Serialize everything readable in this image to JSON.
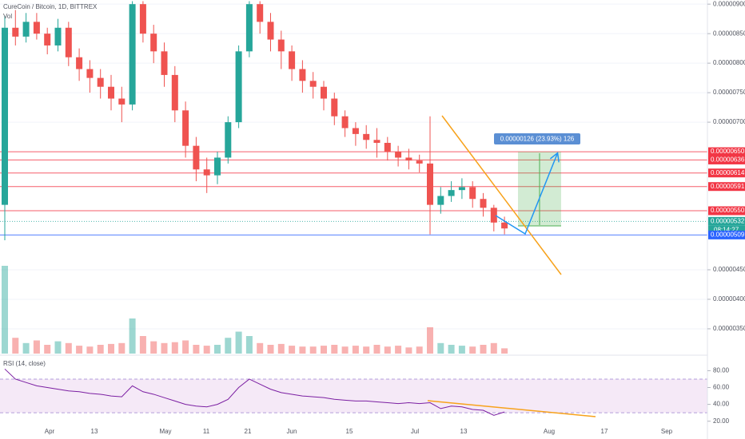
{
  "chart_data": {
    "type": "candlestick",
    "title": "CureCoin / Bitcoin, 1D, BITTREX",
    "volume_label": "Vol",
    "ohlc": [
      [
        5.6e-06,
        8.8e-06,
        5e-06,
        8.6e-06
      ],
      [
        8.6e-06,
        8.9e-06,
        8.3e-06,
        8.45e-06
      ],
      [
        8.45e-06,
        8.85e-06,
        8.35e-06,
        8.7e-06
      ],
      [
        8.7e-06,
        8.85e-06,
        8.4e-06,
        8.5e-06
      ],
      [
        8.5e-06,
        8.6e-06,
        8.15e-06,
        8.3e-06
      ],
      [
        8.3e-06,
        8.75e-06,
        8.2e-06,
        8.6e-06
      ],
      [
        8.6e-06,
        8.7e-06,
        7.95e-06,
        8.1e-06
      ],
      [
        8.1e-06,
        8.25e-06,
        7.7e-06,
        7.9e-06
      ],
      [
        7.9e-06,
        8.05e-06,
        7.5e-06,
        7.75e-06
      ],
      [
        7.75e-06,
        7.9e-06,
        7.4e-06,
        7.6e-06
      ],
      [
        7.6e-06,
        7.8e-06,
        7.2e-06,
        7.4e-06
      ],
      [
        7.4e-06,
        7.6e-06,
        7e-06,
        7.3e-06
      ],
      [
        7.3e-06,
        9.05e-06,
        7.2e-06,
        9e-06
      ],
      [
        9e-06,
        9.05e-06,
        8.35e-06,
        8.5e-06
      ],
      [
        8.5e-06,
        8.65e-06,
        8e-06,
        8.2e-06
      ],
      [
        8.2e-06,
        8.35e-06,
        7.6e-06,
        7.8e-06
      ],
      [
        7.8e-06,
        7.95e-06,
        7e-06,
        7.2e-06
      ],
      [
        7.2e-06,
        7.35e-06,
        6.4e-06,
        6.6e-06
      ],
      [
        6.6e-06,
        6.75e-06,
        6e-06,
        6.2e-06
      ],
      [
        6.2e-06,
        6.4e-06,
        5.8e-06,
        6.1e-06
      ],
      [
        6.1e-06,
        6.5e-06,
        5.95e-06,
        6.4e-06
      ],
      [
        6.4e-06,
        7.1e-06,
        6.3e-06,
        7e-06
      ],
      [
        7e-06,
        8.3e-06,
        6.9e-06,
        8.2e-06
      ],
      [
        8.2e-06,
        9.05e-06,
        8.1e-06,
        9e-06
      ],
      [
        9e-06,
        9.05e-06,
        8.5e-06,
        8.7e-06
      ],
      [
        8.7e-06,
        8.85e-06,
        8.2e-06,
        8.4e-06
      ],
      [
        8.4e-06,
        8.55e-06,
        7.9e-06,
        8.2e-06
      ],
      [
        8.2e-06,
        8.3e-06,
        7.7e-06,
        7.9e-06
      ],
      [
        7.9e-06,
        8.05e-06,
        7.5e-06,
        7.7e-06
      ],
      [
        7.7e-06,
        7.85e-06,
        7.4e-06,
        7.6e-06
      ],
      [
        7.6e-06,
        7.7e-06,
        7.2e-06,
        7.4e-06
      ],
      [
        7.4e-06,
        7.5e-06,
        6.95e-06,
        7.1e-06
      ],
      [
        7.1e-06,
        7.2e-06,
        6.75e-06,
        6.9e-06
      ],
      [
        6.9e-06,
        7e-06,
        6.6e-06,
        6.8e-06
      ],
      [
        6.8e-06,
        6.95e-06,
        6.55e-06,
        6.7e-06
      ],
      [
        6.7e-06,
        6.9e-06,
        6.4e-06,
        6.65e-06
      ],
      [
        6.65e-06,
        6.75e-06,
        6.35e-06,
        6.5e-06
      ],
      [
        6.5e-06,
        6.6e-06,
        6.25e-06,
        6.4e-06
      ],
      [
        6.4e-06,
        6.55e-06,
        6.2e-06,
        6.35e-06
      ],
      [
        6.35e-06,
        6.45e-06,
        6.15e-06,
        6.3e-06
      ],
      [
        6.3e-06,
        7.1e-06,
        5.1e-06,
        5.6e-06
      ],
      [
        5.6e-06,
        5.9e-06,
        5.45e-06,
        5.75e-06
      ],
      [
        5.75e-06,
        6e-06,
        5.65e-06,
        5.85e-06
      ],
      [
        5.85e-06,
        6.05e-06,
        5.7e-06,
        5.9e-06
      ],
      [
        5.9e-06,
        6e-06,
        5.55e-06,
        5.7e-06
      ],
      [
        5.7e-06,
        5.8e-06,
        5.4e-06,
        5.55e-06
      ],
      [
        5.55e-06,
        5.6e-06,
        5.15e-06,
        5.3e-06
      ],
      [
        5.3e-06,
        5.4e-06,
        5.1e-06,
        5.2e-06
      ]
    ],
    "volume": [
      100,
      18,
      12,
      15,
      10,
      14,
      12,
      9,
      8,
      10,
      11,
      12,
      40,
      20,
      14,
      12,
      13,
      15,
      10,
      9,
      10,
      18,
      25,
      20,
      12,
      10,
      11,
      9,
      8,
      8,
      9,
      10,
      8,
      9,
      8,
      10,
      8,
      9,
      7,
      8,
      30,
      12,
      10,
      9,
      8,
      10,
      12,
      6
    ],
    "ylim": [
      3.08e-06,
      9.07e-06
    ],
    "yticks": [
      {
        "value": 9e-06,
        "label": "0.00000900"
      },
      {
        "value": 8.5e-06,
        "label": "0.00000850"
      },
      {
        "value": 8e-06,
        "label": "0.00000800"
      },
      {
        "value": 7.5e-06,
        "label": "0.00000750"
      },
      {
        "value": 7e-06,
        "label": "0.00000700"
      },
      {
        "value": 4.5e-06,
        "label": "0.00000450"
      },
      {
        "value": 4e-06,
        "label": "0.00000400"
      },
      {
        "value": 3.5e-06,
        "label": "0.00000350"
      }
    ],
    "x_labels": [
      "Apr",
      "13",
      "May",
      "11",
      "21",
      "Jun",
      "15",
      "Jul",
      "13",
      "Aug",
      "17",
      "Sep"
    ],
    "price_lines": [
      {
        "value": 6.5e-06,
        "label": "0.00000650",
        "color": "#f23645"
      },
      {
        "value": 6.36e-06,
        "label": "0.00000636",
        "color": "#f23645"
      },
      {
        "value": 6.14e-06,
        "label": "0.00000614",
        "color": "#f23645"
      },
      {
        "value": 5.91e-06,
        "label": "0.00000591",
        "color": "#f23645"
      },
      {
        "value": 5.5e-06,
        "label": "0.00000550",
        "color": "#f23645"
      },
      {
        "value": 5.32e-06,
        "label": "0.00000532",
        "color": "#26a69a"
      },
      {
        "value": 5.09e-06,
        "label": "0.00000509",
        "color": "#2962ff"
      }
    ],
    "countdown": "08:14:27",
    "measure_label": "0.00000126 (23.93%) 126",
    "up_color": "#26a69a",
    "down_color": "#ef5350",
    "rsi": {
      "title": "RSI (14, close)",
      "color": "#7b1fa2",
      "values": [
        82,
        70,
        66,
        62,
        60,
        58,
        56,
        55,
        53,
        52,
        50,
        49,
        62,
        55,
        52,
        48,
        44,
        40,
        38,
        37,
        40,
        46,
        60,
        70,
        64,
        58,
        54,
        52,
        50,
        49,
        48,
        46,
        45,
        44,
        44,
        43,
        42,
        41,
        42,
        41,
        42,
        35,
        38,
        37,
        34,
        33,
        27,
        31
      ],
      "ylim": [
        15,
        96.5
      ],
      "yticks": [
        {
          "value": 80,
          "label": "80.00"
        },
        {
          "value": 60,
          "label": "60.00"
        },
        {
          "value": 40,
          "label": "40.00"
        },
        {
          "value": 20,
          "label": "20.00"
        }
      ],
      "band": [
        30,
        70
      ]
    }
  }
}
